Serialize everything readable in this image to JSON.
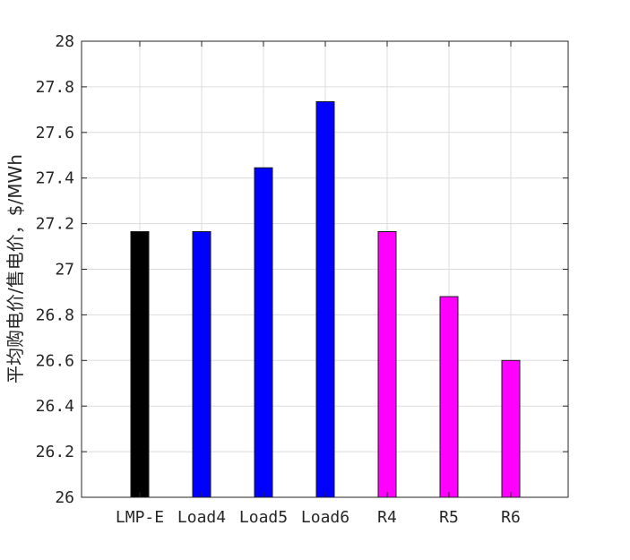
{
  "chart_data": {
    "type": "bar",
    "categories": [
      "LMP-E",
      "Load4",
      "Load5",
      "Load6",
      "R4",
      "R5",
      "R6"
    ],
    "values": [
      27.165,
      27.165,
      27.445,
      27.735,
      27.165,
      26.88,
      26.6
    ],
    "bar_colors": [
      "#000000",
      "#0000ff",
      "#0000ff",
      "#0000ff",
      "#ff00ff",
      "#ff00ff",
      "#ff00ff"
    ],
    "ylabel": "平均购电价/售电价，$/MWh",
    "ylim": [
      26,
      28
    ],
    "yticks": [
      "26",
      "26.2",
      "26.4",
      "26.6",
      "26.8",
      "27",
      "27.2",
      "27.4",
      "27.6",
      "27.8",
      "28"
    ],
    "grid": true
  }
}
